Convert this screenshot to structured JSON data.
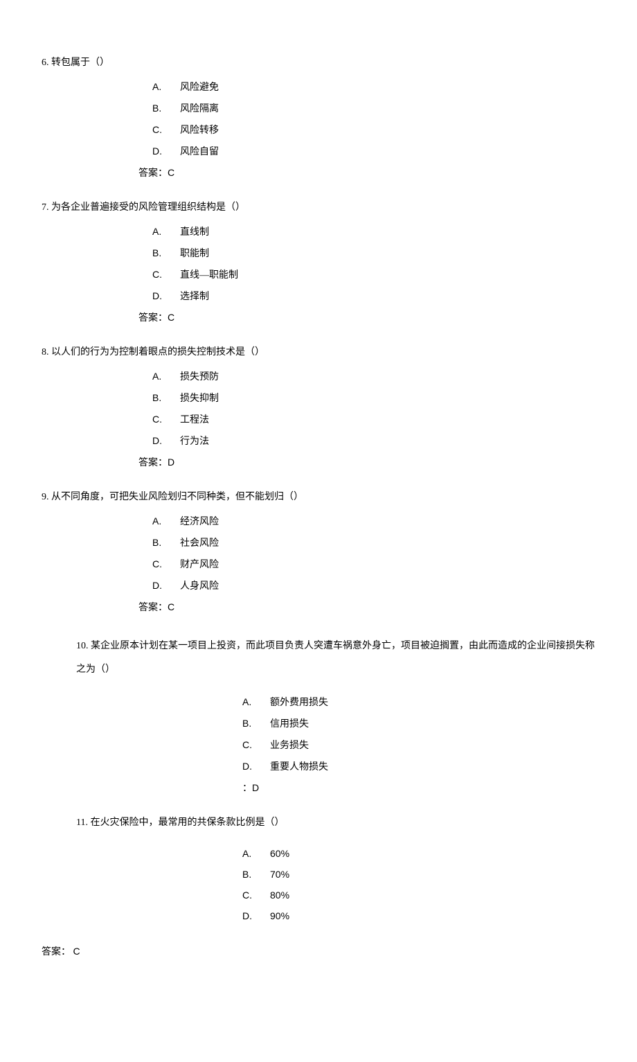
{
  "questions": [
    {
      "number": "6.",
      "stem": "转包属于（）",
      "options": [
        {
          "letter": "A.",
          "text": "风险避免"
        },
        {
          "letter": "B.",
          "text": "风险隔离"
        },
        {
          "letter": "C.",
          "text": "风险转移"
        },
        {
          "letter": "D.",
          "text": "风险自留"
        }
      ],
      "answer_label": "答案：",
      "answer": "C"
    },
    {
      "number": "7.",
      "stem": "为各企业普遍接受的风险管理组织结构是（）",
      "options": [
        {
          "letter": "A.",
          "text": "直线制"
        },
        {
          "letter": "B.",
          "text": "职能制"
        },
        {
          "letter": "C.",
          "text": "直线—职能制"
        },
        {
          "letter": "D.",
          "text": "选择制"
        }
      ],
      "answer_label": "答案：",
      "answer": "C"
    },
    {
      "number": "8.",
      "stem": "以人们的行为为控制着眼点的损失控制技术是（）",
      "options": [
        {
          "letter": "A.",
          "text": "损失预防"
        },
        {
          "letter": "B.",
          "text": "损失抑制"
        },
        {
          "letter": "C.",
          "text": "工程法"
        },
        {
          "letter": "D.",
          "text": "行为法"
        }
      ],
      "answer_label": "答案：",
      "answer": "D"
    },
    {
      "number": "9.",
      "stem": "从不同角度，可把失业风险划归不同种类，但不能划归（）",
      "options": [
        {
          "letter": "A.",
          "text": "经济风险"
        },
        {
          "letter": "B.",
          "text": "社会风险"
        },
        {
          "letter": "C.",
          "text": "财产风险"
        },
        {
          "letter": "D.",
          "text": "人身风险"
        }
      ],
      "answer_label": "答案：",
      "answer": "C"
    }
  ],
  "q10": {
    "stem": "10. 某企业原本计划在某一项目上投资，而此项目负责人突遭车祸意外身亡，项目被迫搁置，由此而造成的企业间接损失称之为（）",
    "options": [
      {
        "letter": "A.",
        "text": "额外费用损失"
      },
      {
        "letter": "B.",
        "text": "信用损失"
      },
      {
        "letter": "C.",
        "text": "业务损失"
      },
      {
        "letter": "D.",
        "text": "重要人物损失"
      }
    ],
    "answer_label": "：",
    "answer": "D"
  },
  "q11": {
    "stem": "11. 在火灾保险中，最常用的共保条款比例是（）",
    "options": [
      {
        "letter": "A.",
        "text": "60%"
      },
      {
        "letter": "B.",
        "text": "70%"
      },
      {
        "letter": "C.",
        "text": "80%"
      },
      {
        "letter": "D.",
        "text": "90%"
      }
    ],
    "answer_label": "答案：  ",
    "answer": "C"
  }
}
